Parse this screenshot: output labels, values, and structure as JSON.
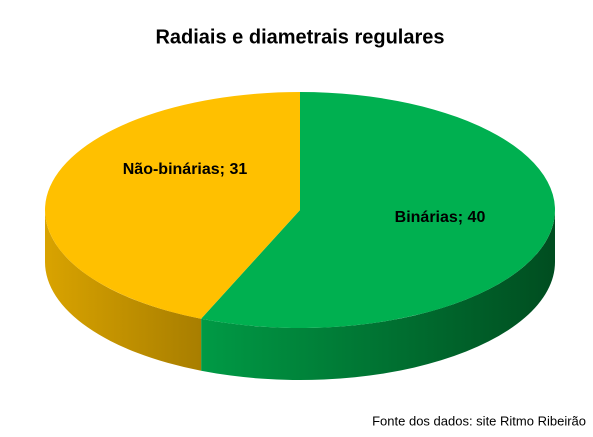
{
  "chart_data": {
    "type": "pie",
    "title": "Radiais e diametrais regulares",
    "values": [
      40,
      31
    ],
    "value_labels": [
      "Binárias; 40",
      "Não-binárias; 31"
    ],
    "colors": [
      "#00b050",
      "#ffc000"
    ],
    "source": "Fonte dos dados: site Ritmo Ribeirão"
  }
}
